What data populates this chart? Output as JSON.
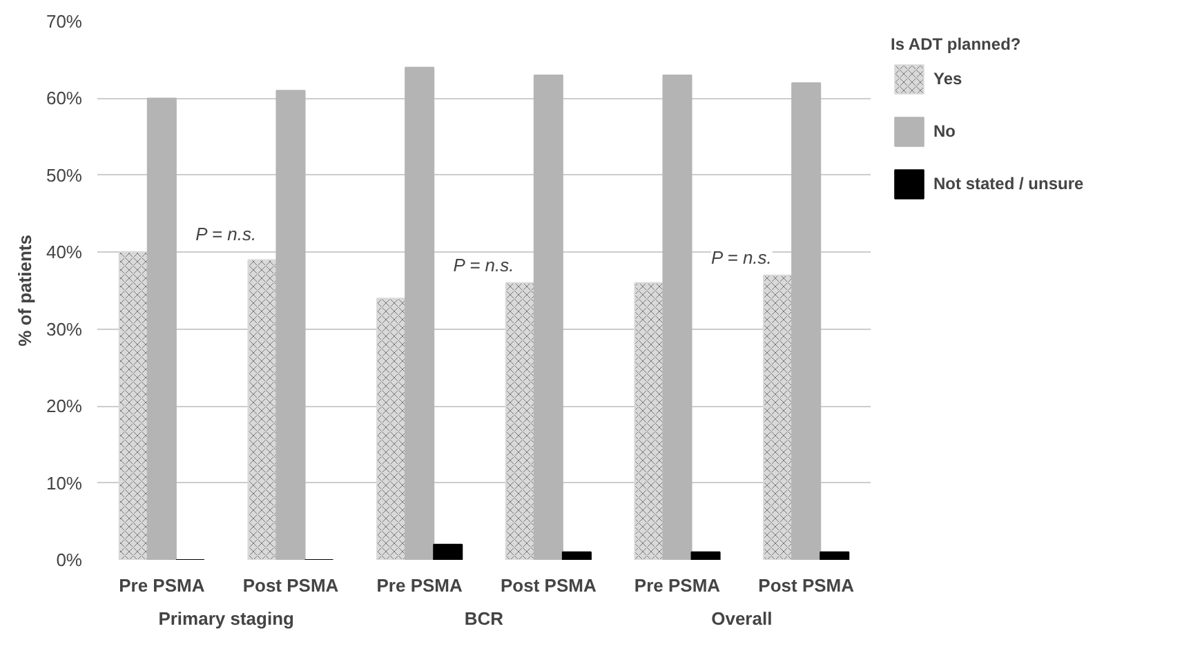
{
  "chart_data": {
    "type": "bar",
    "ylabel": "% of patients",
    "legend_title": "Is ADT planned?",
    "categories": [
      "Pre PSMA",
      "Post PSMA",
      "Pre PSMA",
      "Post PSMA",
      "Pre PSMA",
      "Post PSMA"
    ],
    "series": [
      {
        "name": "Yes",
        "color": "#d9d9d9",
        "values": [
          40,
          39,
          34,
          36,
          36,
          37
        ]
      },
      {
        "name": "No",
        "color": "#b4b4b4",
        "values": [
          60,
          61,
          64,
          63,
          63,
          62
        ]
      },
      {
        "name": "Not stated / unsure",
        "color": "#000000",
        "values": [
          0,
          0,
          2,
          1,
          1,
          1
        ]
      }
    ],
    "ylim": [
      0,
      70
    ],
    "yticks": [
      {
        "value": 0,
        "label": "0%"
      },
      {
        "value": 10,
        "label": "10%"
      },
      {
        "value": 20,
        "label": "20%"
      },
      {
        "value": 30,
        "label": "30%"
      },
      {
        "value": 40,
        "label": "40%"
      },
      {
        "value": 50,
        "label": "50%"
      },
      {
        "value": 60,
        "label": "60%"
      },
      {
        "value": 70,
        "label": "70%"
      }
    ],
    "annotations": [
      "Primary staging",
      "BCR",
      "Overall",
      "P = n.s.",
      "P = n.s.",
      "P = n.s."
    ],
    "grid": "y",
    "legend": "right"
  }
}
